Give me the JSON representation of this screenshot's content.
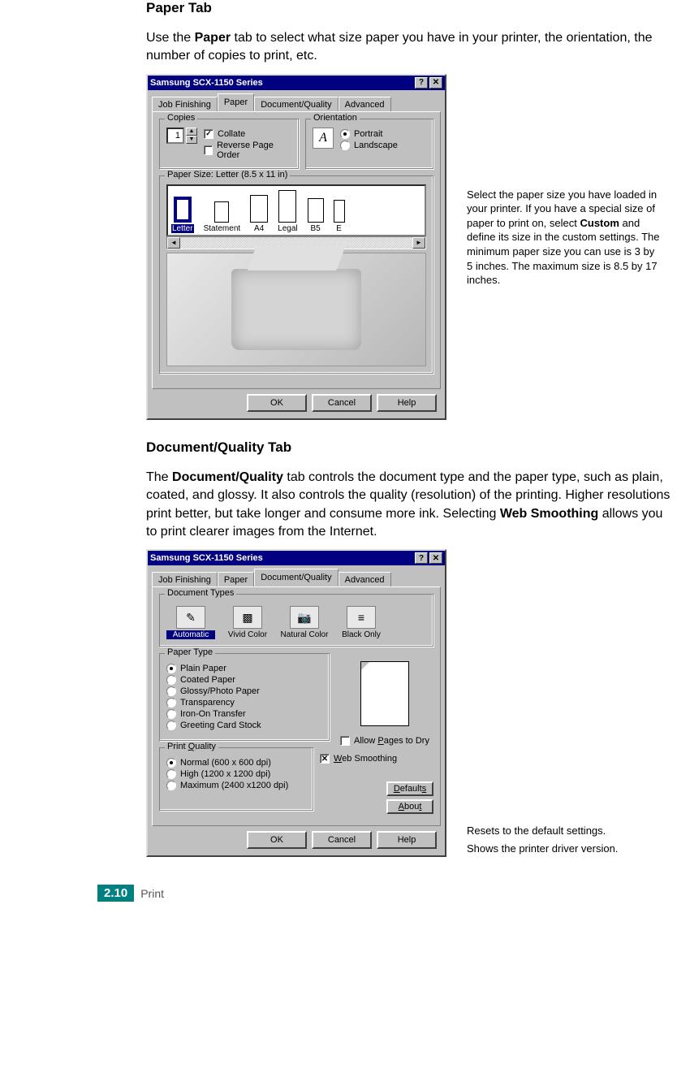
{
  "colors": {
    "win_bg": "#c0c0c0",
    "titlebar_bg": "#000080",
    "titlebar_text": "#ffffff",
    "accent_cyan": "#00a19a",
    "page_accent": "#008080"
  },
  "section1": {
    "heading": "Paper Tab",
    "intro_pre": "Use the ",
    "intro_bold": "Paper",
    "intro_post": " tab to select what size paper you have in your printer, the orientation, the number of copies to print, etc."
  },
  "dialog1": {
    "title": "Samsung SCX-1150 Series",
    "help_icon": "?",
    "close_icon": "✕",
    "tabs": [
      "Job Finishing",
      "Paper",
      "Document/Quality",
      "Advanced"
    ],
    "active_tab_index": 1,
    "copies": {
      "group_label": "Copies",
      "value": "1",
      "collate_label": "Collate",
      "collate_checked": true,
      "reverse_label": "Reverse Page Order",
      "reverse_checked": false
    },
    "orientation": {
      "group_label": "Orientation",
      "icon_letter": "A",
      "portrait_label": "Portrait",
      "portrait_selected": true,
      "landscape_label": "Landscape",
      "landscape_selected": false
    },
    "paper_size_group": "Paper Size: Letter (8.5 x 11 in)",
    "paper_options": [
      {
        "label": "Letter",
        "selected": true
      },
      {
        "label": "Statement",
        "selected": false
      },
      {
        "label": "A4",
        "selected": false
      },
      {
        "label": "Legal",
        "selected": false
      },
      {
        "label": "B5",
        "selected": false
      },
      {
        "label": "E",
        "selected": false
      }
    ],
    "buttons": {
      "ok": "OK",
      "cancel": "Cancel",
      "help": "Help"
    }
  },
  "annotations1": {
    "paper_size_callout": "Select the paper size you have loaded in your printer. If you have a special size of paper to print on, select Custom and define its size in the custom settings. The minimum paper size you can use is 3 by 5 inches. The maximum size is 8.5 by 17 inches.",
    "custom_bold": "Custom"
  },
  "section2": {
    "heading": "Document/Quality Tab",
    "intro_pre": "The ",
    "intro_bold": "Document/Quality",
    "intro_mid": " tab controls the document type and the paper type, such as plain, coated, and glossy. It also controls the quality (resolution) of the printing. Higher resolutions print better, but take longer and consume more ink. Selecting ",
    "intro_bold2": "Web Smoothing",
    "intro_post": " allows you to print clearer images from the Internet."
  },
  "dialog2": {
    "title": "Samsung SCX-1150 Series",
    "tabs": [
      "Job Finishing",
      "Paper",
      "Document/Quality",
      "Advanced"
    ],
    "active_tab_index": 2,
    "doctypes": {
      "group_label": "Document Types",
      "items": [
        {
          "label": "Automatic",
          "selected": true,
          "glyph": "✎"
        },
        {
          "label": "Vivid Color",
          "selected": false,
          "glyph": "▩"
        },
        {
          "label": "Natural Color",
          "selected": false,
          "glyph": "📷"
        },
        {
          "label": "Black Only",
          "selected": false,
          "glyph": "≡"
        }
      ]
    },
    "paper_type": {
      "group_label": "Paper Type",
      "options": [
        "Plain Paper",
        "Coated Paper",
        "Glossy/Photo Paper",
        "Transparency",
        "Iron-On Transfer",
        "Greeting Card Stock"
      ],
      "selected_index": 0,
      "allow_dry_label": "Allow Pages to Dry",
      "allow_dry_underline_letter": "P",
      "allow_dry_checked": false
    },
    "print_quality": {
      "group_label": "Print Quality",
      "underline_letter": "Q",
      "options": [
        "Normal (600 x 600 dpi)",
        "High (1200 x 1200 dpi)",
        "Maximum (2400 x1200 dpi)"
      ],
      "selected_index": 0,
      "web_smoothing_label": "Web Smoothing",
      "web_underline_letter": "W",
      "web_checked": true
    },
    "side_buttons": {
      "defaults": "Defaults",
      "defaults_u": "D",
      "about": "About",
      "about_u": "A"
    },
    "buttons": {
      "ok": "OK",
      "cancel": "Cancel",
      "help": "Help"
    }
  },
  "annotations2": {
    "defaults_callout": "Resets to the default settings.",
    "about_callout": "Shows the printer driver version."
  },
  "footer": {
    "page_number": "2.10",
    "chapter": "Print"
  }
}
